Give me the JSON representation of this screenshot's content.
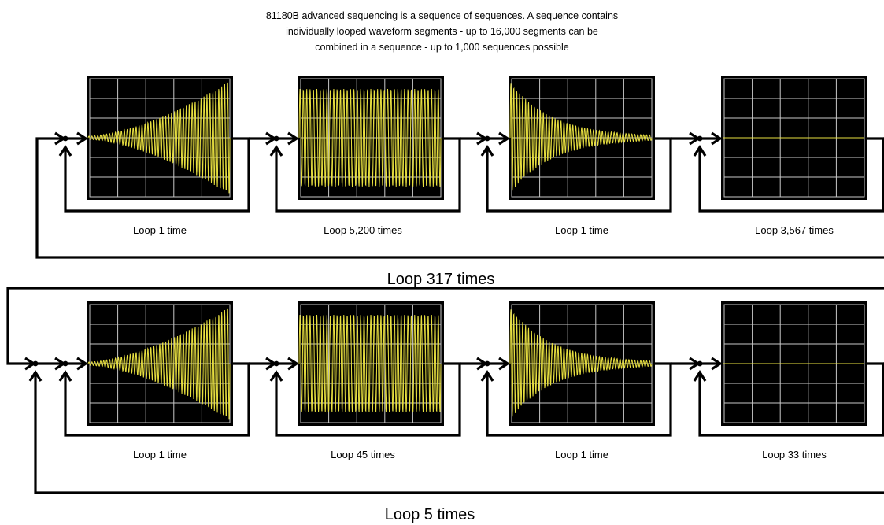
{
  "caption": {
    "line1": "81180B advanced sequencing is a sequence of sequences. A sequence contains",
    "line2": "individually looped waveform segments - up to 16,000 segments can be",
    "line3": "combined in a sequence - up to 1,000 sequences possible"
  },
  "colors": {
    "screen": "#000000",
    "grid": "#c8c8c8",
    "trace": "#e8e040",
    "line": "#000000"
  },
  "sequences": [
    {
      "loop_label": "Loop 317 times",
      "segments": [
        {
          "waveform": "rising-envelope",
          "loop_label": "Loop 1 time"
        },
        {
          "waveform": "constant-amplitude",
          "loop_label": "Loop 5,200 times"
        },
        {
          "waveform": "decaying-envelope",
          "loop_label": "Loop 1 time"
        },
        {
          "waveform": "flat-line",
          "loop_label": "Loop 3,567 times"
        }
      ]
    },
    {
      "loop_label": "Loop 5 times",
      "segments": [
        {
          "waveform": "rising-envelope",
          "loop_label": "Loop 1 time"
        },
        {
          "waveform": "constant-amplitude",
          "loop_label": "Loop 45 times"
        },
        {
          "waveform": "decaying-envelope",
          "loop_label": "Loop 1 time"
        },
        {
          "waveform": "flat-line",
          "loop_label": "Loop 33 times"
        }
      ]
    }
  ]
}
